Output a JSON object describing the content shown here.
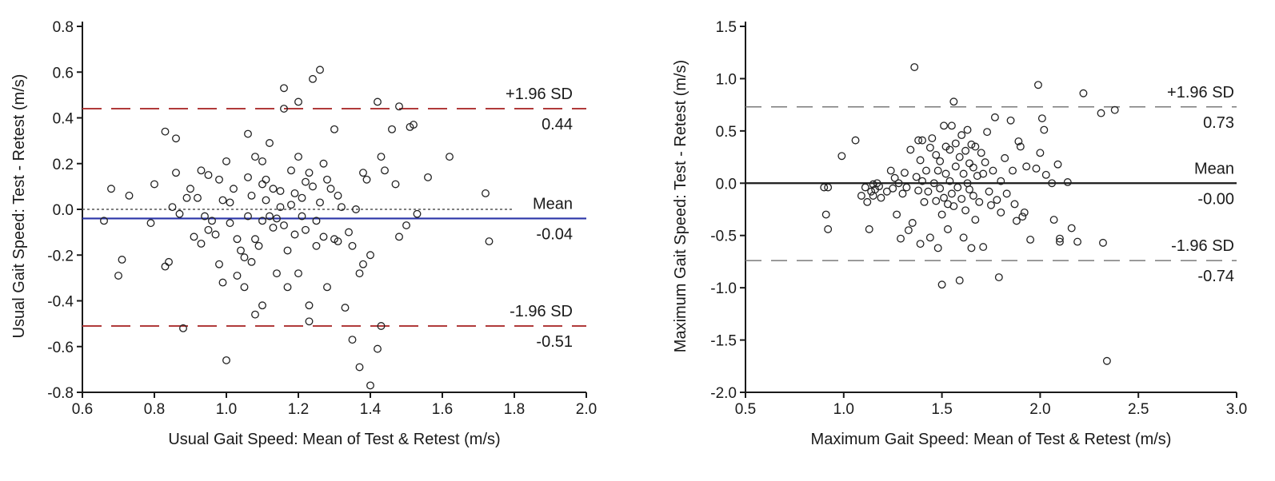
{
  "chart_data": [
    {
      "type": "scatter",
      "title": "",
      "xlabel": "Usual Gait Speed: Mean of Test & Retest (m/s)",
      "ylabel": "Usual Gait Speed: Test - Retest (m/s)",
      "xlim": [
        0.6,
        2.0
      ],
      "ylim": [
        -0.8,
        0.8
      ],
      "xticks": [
        "0.6",
        "0.8",
        "1.0",
        "1.2",
        "1.4",
        "1.6",
        "1.8",
        "2.0"
      ],
      "yticks": [
        "-0.8",
        "-0.6",
        "-0.4",
        "-0.2",
        "0.0",
        "0.2",
        "0.4",
        "0.6",
        "0.8"
      ],
      "grid": false,
      "colors": {
        "sd_lines": "#b03a3a",
        "mean_line": "#2b35a8",
        "zero_line": "#555555",
        "points": "#222222"
      },
      "reference_lines": [
        {
          "id": "upper",
          "label": "+1.96 SD",
          "value_label": "0.44",
          "y": 0.44,
          "style": "dashed"
        },
        {
          "id": "mean",
          "label": "Mean",
          "value_label": "-0.04",
          "y": -0.04,
          "style": "solid"
        },
        {
          "id": "lower",
          "label": "-1.96 SD",
          "value_label": "-0.51",
          "y": -0.51,
          "style": "dashed"
        }
      ],
      "zero_line": {
        "y": 0.0,
        "style": "dotted",
        "x_range": [
          0.6,
          1.8
        ]
      },
      "points": [
        [
          0.66,
          -0.05
        ],
        [
          0.68,
          0.09
        ],
        [
          0.7,
          -0.29
        ],
        [
          0.71,
          -0.22
        ],
        [
          0.73,
          0.06
        ],
        [
          0.79,
          -0.06
        ],
        [
          0.8,
          0.11
        ],
        [
          0.83,
          0.34
        ],
        [
          0.83,
          -0.25
        ],
        [
          0.84,
          -0.23
        ],
        [
          0.85,
          0.01
        ],
        [
          0.86,
          0.16
        ],
        [
          0.86,
          0.31
        ],
        [
          0.87,
          -0.02
        ],
        [
          0.88,
          -0.52
        ],
        [
          0.89,
          0.05
        ],
        [
          0.9,
          0.09
        ],
        [
          0.91,
          -0.12
        ],
        [
          0.92,
          0.05
        ],
        [
          0.93,
          0.17
        ],
        [
          0.93,
          -0.15
        ],
        [
          0.94,
          -0.03
        ],
        [
          0.95,
          0.15
        ],
        [
          0.95,
          -0.09
        ],
        [
          0.96,
          -0.05
        ],
        [
          0.97,
          -0.11
        ],
        [
          0.98,
          0.13
        ],
        [
          0.98,
          -0.24
        ],
        [
          0.99,
          -0.32
        ],
        [
          0.99,
          0.04
        ],
        [
          1.0,
          0.21
        ],
        [
          1.0,
          -0.66
        ],
        [
          1.01,
          -0.06
        ],
        [
          1.01,
          0.03
        ],
        [
          1.02,
          0.09
        ],
        [
          1.03,
          -0.29
        ],
        [
          1.03,
          -0.13
        ],
        [
          1.04,
          -0.18
        ],
        [
          1.05,
          -0.34
        ],
        [
          1.05,
          -0.21
        ],
        [
          1.06,
          0.33
        ],
        [
          1.06,
          -0.03
        ],
        [
          1.06,
          0.14
        ],
        [
          1.07,
          -0.23
        ],
        [
          1.07,
          0.06
        ],
        [
          1.08,
          0.23
        ],
        [
          1.08,
          -0.13
        ],
        [
          1.08,
          -0.46
        ],
        [
          1.09,
          -0.16
        ],
        [
          1.1,
          0.11
        ],
        [
          1.1,
          -0.05
        ],
        [
          1.1,
          -0.42
        ],
        [
          1.1,
          0.21
        ],
        [
          1.11,
          0.04
        ],
        [
          1.11,
          0.13
        ],
        [
          1.12,
          0.29
        ],
        [
          1.12,
          -0.03
        ],
        [
          1.13,
          -0.08
        ],
        [
          1.13,
          0.09
        ],
        [
          1.14,
          -0.28
        ],
        [
          1.14,
          -0.04
        ],
        [
          1.15,
          0.01
        ],
        [
          1.15,
          0.08
        ],
        [
          1.16,
          -0.07
        ],
        [
          1.16,
          0.53
        ],
        [
          1.16,
          0.44
        ],
        [
          1.17,
          -0.18
        ],
        [
          1.17,
          -0.34
        ],
        [
          1.18,
          0.02
        ],
        [
          1.18,
          0.17
        ],
        [
          1.19,
          -0.11
        ],
        [
          1.19,
          0.07
        ],
        [
          1.2,
          0.23
        ],
        [
          1.2,
          0.47
        ],
        [
          1.2,
          -0.28
        ],
        [
          1.21,
          0.05
        ],
        [
          1.21,
          -0.03
        ],
        [
          1.22,
          -0.09
        ],
        [
          1.22,
          0.12
        ],
        [
          1.23,
          0.16
        ],
        [
          1.23,
          -0.42
        ],
        [
          1.23,
          -0.49
        ],
        [
          1.24,
          0.57
        ],
        [
          1.24,
          0.1
        ],
        [
          1.25,
          -0.05
        ],
        [
          1.25,
          -0.16
        ],
        [
          1.26,
          0.61
        ],
        [
          1.26,
          0.03
        ],
        [
          1.27,
          -0.12
        ],
        [
          1.27,
          0.2
        ],
        [
          1.28,
          -0.34
        ],
        [
          1.28,
          0.13
        ],
        [
          1.29,
          0.09
        ],
        [
          1.3,
          -0.13
        ],
        [
          1.3,
          0.35
        ],
        [
          1.31,
          0.06
        ],
        [
          1.31,
          -0.14
        ],
        [
          1.32,
          0.01
        ],
        [
          1.33,
          -0.43
        ],
        [
          1.34,
          -0.1
        ],
        [
          1.35,
          -0.57
        ],
        [
          1.35,
          -0.16
        ],
        [
          1.36,
          0.0
        ],
        [
          1.37,
          -0.28
        ],
        [
          1.37,
          -0.69
        ],
        [
          1.38,
          0.16
        ],
        [
          1.38,
          -0.24
        ],
        [
          1.39,
          0.13
        ],
        [
          1.4,
          -0.77
        ],
        [
          1.4,
          -0.2
        ],
        [
          1.42,
          -0.61
        ],
        [
          1.42,
          0.47
        ],
        [
          1.43,
          -0.51
        ],
        [
          1.43,
          0.23
        ],
        [
          1.44,
          0.17
        ],
        [
          1.46,
          0.35
        ],
        [
          1.47,
          0.11
        ],
        [
          1.48,
          0.45
        ],
        [
          1.48,
          -0.12
        ],
        [
          1.5,
          -0.07
        ],
        [
          1.51,
          0.36
        ],
        [
          1.52,
          0.37
        ],
        [
          1.53,
          -0.02
        ],
        [
          1.56,
          0.14
        ],
        [
          1.62,
          0.23
        ],
        [
          1.72,
          0.07
        ],
        [
          1.73,
          -0.14
        ]
      ]
    },
    {
      "type": "scatter",
      "title": "",
      "xlabel": "Maximum Gait Speed: Mean of Test & Retest (m/s)",
      "ylabel": "Maximum Gait Speed: Test - Retest (m/s)",
      "xlim": [
        0.5,
        3.0
      ],
      "ylim": [
        -2.0,
        1.5
      ],
      "xticks": [
        "0.5",
        "1.0",
        "1.5",
        "2.0",
        "2.5",
        "3.0"
      ],
      "yticks": [
        "-2.0",
        "-1.5",
        "-1.0",
        "-0.5",
        "0.0",
        "0.5",
        "1.0",
        "1.5"
      ],
      "grid": false,
      "colors": {
        "sd_lines": "#7a7a7a",
        "mean_line": "#1a1a1a",
        "points": "#222222"
      },
      "reference_lines": [
        {
          "id": "upper",
          "label": "+1.96 SD",
          "value_label": "0.73",
          "y": 0.73,
          "style": "dashed"
        },
        {
          "id": "mean",
          "label": "Mean",
          "value_label": "-0.00",
          "y": 0.0,
          "style": "solid"
        },
        {
          "id": "lower",
          "label": "-1.96 SD",
          "value_label": "-0.74",
          "y": -0.74,
          "style": "dashed"
        }
      ],
      "points": [
        [
          0.9,
          -0.04
        ],
        [
          0.91,
          -0.3
        ],
        [
          0.92,
          -0.44
        ],
        [
          0.92,
          -0.04
        ],
        [
          0.99,
          0.26
        ],
        [
          1.06,
          0.41
        ],
        [
          1.09,
          -0.12
        ],
        [
          1.11,
          -0.04
        ],
        [
          1.12,
          -0.18
        ],
        [
          1.13,
          -0.44
        ],
        [
          1.14,
          -0.08
        ],
        [
          1.15,
          -0.01
        ],
        [
          1.15,
          -0.12
        ],
        [
          1.16,
          -0.06
        ],
        [
          1.17,
          0.0
        ],
        [
          1.18,
          -0.03
        ],
        [
          1.19,
          -0.14
        ],
        [
          1.22,
          -0.08
        ],
        [
          1.24,
          0.12
        ],
        [
          1.25,
          -0.05
        ],
        [
          1.26,
          0.05
        ],
        [
          1.27,
          -0.3
        ],
        [
          1.28,
          0.0
        ],
        [
          1.29,
          -0.53
        ],
        [
          1.3,
          -0.1
        ],
        [
          1.31,
          0.1
        ],
        [
          1.32,
          -0.04
        ],
        [
          1.33,
          -0.45
        ],
        [
          1.34,
          0.32
        ],
        [
          1.35,
          -0.38
        ],
        [
          1.36,
          1.11
        ],
        [
          1.37,
          0.06
        ],
        [
          1.38,
          0.41
        ],
        [
          1.38,
          -0.07
        ],
        [
          1.39,
          -0.58
        ],
        [
          1.39,
          0.22
        ],
        [
          1.4,
          0.02
        ],
        [
          1.4,
          0.41
        ],
        [
          1.41,
          -0.18
        ],
        [
          1.42,
          0.12
        ],
        [
          1.43,
          -0.08
        ],
        [
          1.44,
          0.34
        ],
        [
          1.44,
          -0.52
        ],
        [
          1.45,
          0.43
        ],
        [
          1.46,
          0.0
        ],
        [
          1.47,
          0.27
        ],
        [
          1.47,
          -0.17
        ],
        [
          1.48,
          -0.62
        ],
        [
          1.48,
          0.12
        ],
        [
          1.49,
          -0.05
        ],
        [
          1.49,
          0.21
        ],
        [
          1.5,
          -0.97
        ],
        [
          1.5,
          -0.3
        ],
        [
          1.51,
          0.55
        ],
        [
          1.51,
          -0.14
        ],
        [
          1.52,
          0.09
        ],
        [
          1.52,
          0.35
        ],
        [
          1.53,
          -0.2
        ],
        [
          1.53,
          -0.44
        ],
        [
          1.54,
          0.02
        ],
        [
          1.54,
          0.32
        ],
        [
          1.55,
          -0.1
        ],
        [
          1.55,
          0.55
        ],
        [
          1.56,
          0.78
        ],
        [
          1.56,
          -0.22
        ],
        [
          1.57,
          0.16
        ],
        [
          1.57,
          0.38
        ],
        [
          1.58,
          -0.04
        ],
        [
          1.59,
          -0.93
        ],
        [
          1.59,
          0.25
        ],
        [
          1.6,
          -0.15
        ],
        [
          1.6,
          0.46
        ],
        [
          1.61,
          0.09
        ],
        [
          1.61,
          -0.52
        ],
        [
          1.62,
          0.31
        ],
        [
          1.62,
          -0.26
        ],
        [
          1.63,
          0.51
        ],
        [
          1.63,
          0.0
        ],
        [
          1.64,
          0.19
        ],
        [
          1.64,
          -0.06
        ],
        [
          1.65,
          0.37
        ],
        [
          1.65,
          -0.62
        ],
        [
          1.66,
          -0.12
        ],
        [
          1.66,
          0.15
        ],
        [
          1.67,
          0.35
        ],
        [
          1.67,
          -0.35
        ],
        [
          1.68,
          0.07
        ],
        [
          1.69,
          -0.18
        ],
        [
          1.7,
          0.29
        ],
        [
          1.71,
          -0.61
        ],
        [
          1.71,
          0.09
        ],
        [
          1.72,
          0.2
        ],
        [
          1.73,
          0.49
        ],
        [
          1.74,
          -0.08
        ],
        [
          1.75,
          -0.21
        ],
        [
          1.76,
          0.12
        ],
        [
          1.77,
          0.63
        ],
        [
          1.78,
          -0.16
        ],
        [
          1.79,
          -0.9
        ],
        [
          1.8,
          -0.28
        ],
        [
          1.8,
          0.02
        ],
        [
          1.82,
          0.24
        ],
        [
          1.83,
          -0.1
        ],
        [
          1.85,
          0.6
        ],
        [
          1.86,
          0.12
        ],
        [
          1.87,
          -0.2
        ],
        [
          1.88,
          -0.36
        ],
        [
          1.89,
          0.4
        ],
        [
          1.9,
          0.35
        ],
        [
          1.91,
          -0.32
        ],
        [
          1.92,
          -0.28
        ],
        [
          1.93,
          0.16
        ],
        [
          1.95,
          -0.54
        ],
        [
          1.98,
          0.14
        ],
        [
          1.99,
          0.94
        ],
        [
          2.0,
          0.29
        ],
        [
          2.01,
          0.62
        ],
        [
          2.02,
          0.51
        ],
        [
          2.03,
          0.08
        ],
        [
          2.06,
          0.0
        ],
        [
          2.07,
          -0.35
        ],
        [
          2.09,
          0.18
        ],
        [
          2.1,
          -0.56
        ],
        [
          2.1,
          -0.53
        ],
        [
          2.14,
          0.01
        ],
        [
          2.16,
          -0.43
        ],
        [
          2.19,
          -0.56
        ],
        [
          2.22,
          0.86
        ],
        [
          2.31,
          0.67
        ],
        [
          2.32,
          -0.57
        ],
        [
          2.34,
          -1.7
        ],
        [
          2.38,
          0.7
        ]
      ]
    }
  ]
}
